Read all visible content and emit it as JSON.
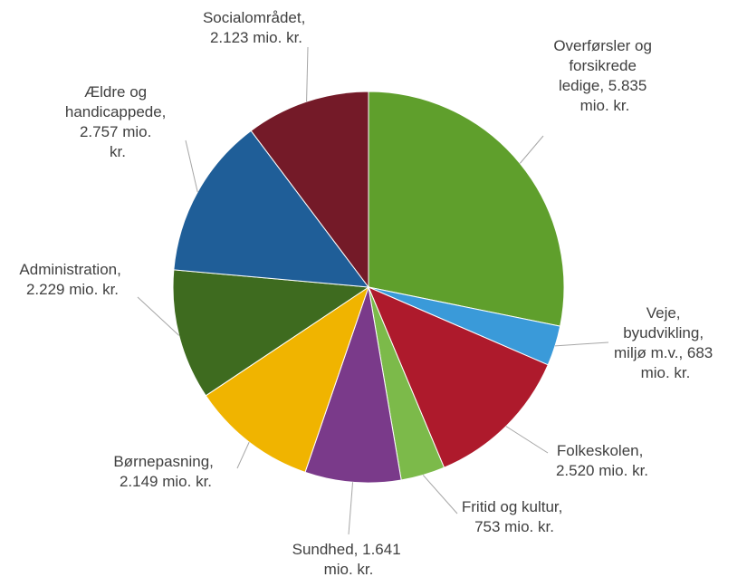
{
  "chart_data": {
    "type": "pie",
    "categories": [
      "Overførsler og forsikrede ledige, 5.835 mio. kr.",
      "Veje, byudvikling, miljø m.v., 683 mio. kr.",
      "Folkeskolen, 2.520 mio. kr.",
      "Fritid og kultur, 753 mio. kr.",
      "Sundhed, 1.641 mio. kr.",
      "Børnepasning, 2.149 mio. kr.",
      "Administration, 2.229 mio. kr.",
      "Ældre og handicappede, 2.757 mio. kr.",
      "Socialområdet, 2.123 mio. kr."
    ],
    "values": [
      5835,
      683,
      2520,
      753,
      1641,
      2149,
      2229,
      2757,
      2123
    ],
    "colors": [
      "#5f9f2c",
      "#3a9ad9",
      "#ae1a2c",
      "#7cba4a",
      "#7a3a8a",
      "#f0b400",
      "#3e6b1f",
      "#1f5e98",
      "#741a28"
    ]
  }
}
